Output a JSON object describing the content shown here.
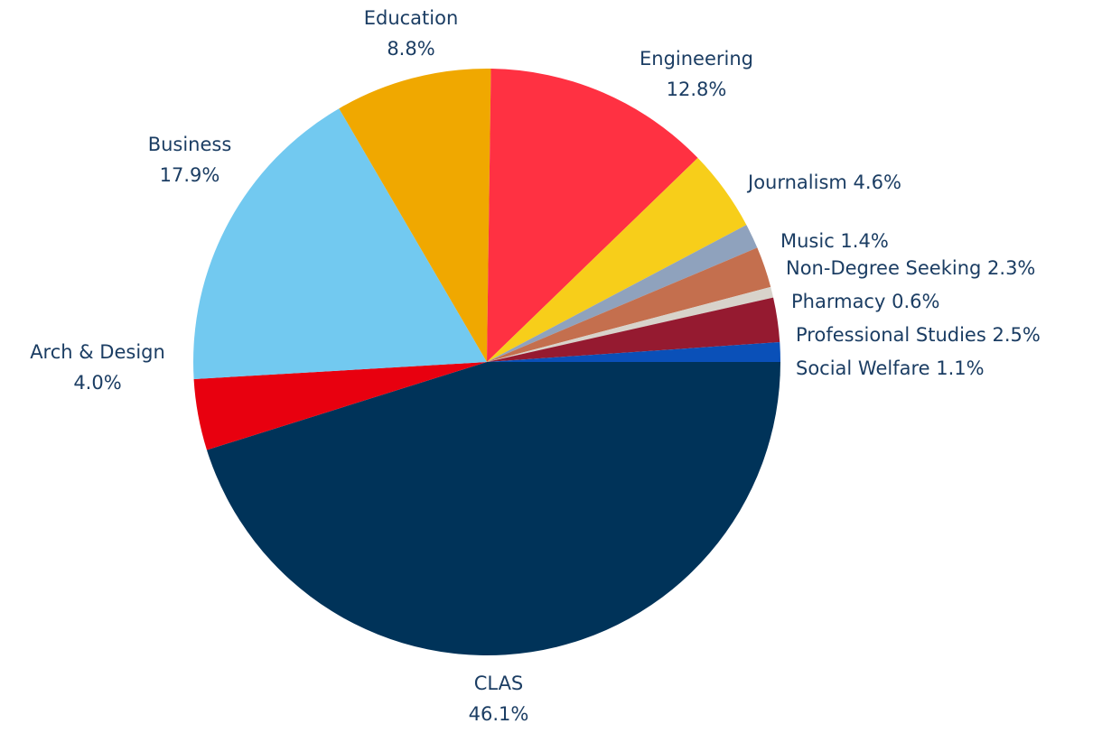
{
  "chart_data": {
    "type": "pie",
    "title": "",
    "start": "3 o'clock, clockwise",
    "slices": [
      {
        "label": "CLAS",
        "value": 46.1,
        "text": "46.1%",
        "color": "#003359"
      },
      {
        "label": "Arch & Design",
        "value": 4.0,
        "text": "4.0%",
        "color": "#e8000f"
      },
      {
        "label": "Business",
        "value": 17.9,
        "text": "17.9%",
        "color": "#72c9f0"
      },
      {
        "label": "Education",
        "value": 8.8,
        "text": "8.8%",
        "color": "#f0a800"
      },
      {
        "label": "Engineering",
        "value": 12.8,
        "text": "12.8%",
        "color": "#ff3142"
      },
      {
        "label": "Journalism",
        "value": 4.6,
        "text": "4.6%",
        "color": "#f7ce1a"
      },
      {
        "label": "Music",
        "value": 1.4,
        "text": "1.4%",
        "color": "#8fa2bd"
      },
      {
        "label": "Non-Degree Seeking",
        "value": 2.3,
        "text": "2.3%",
        "color": "#c46f4e"
      },
      {
        "label": "Pharmacy",
        "value": 0.6,
        "text": "0.6%",
        "color": "#d8d3cb"
      },
      {
        "label": "Professional Studies",
        "value": 2.5,
        "text": "2.5%",
        "color": "#951a30"
      },
      {
        "label": "Social Welfare",
        "value": 1.1,
        "text": "1.1%",
        "color": "#0a50b8"
      }
    ],
    "label_color": "#1b3d63"
  }
}
